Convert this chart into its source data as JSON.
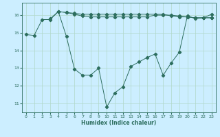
{
  "xlabel": "Humidex (Indice chaleur)",
  "bg_color": "#cceeff",
  "grid_color": "#b0d8c8",
  "line_color": "#2d6e5e",
  "line1": [
    14.9,
    14.85,
    15.75,
    15.75,
    16.2,
    14.8,
    12.95,
    12.6,
    12.6,
    13.0,
    10.8,
    11.6,
    11.95,
    13.1,
    13.35,
    13.6,
    13.8,
    12.6,
    13.3,
    13.9,
    15.95,
    15.8,
    15.85,
    16.05
  ],
  "line2": [
    null,
    null,
    null,
    15.8,
    16.2,
    16.15,
    16.05,
    15.95,
    15.9,
    15.9,
    15.9,
    15.9,
    15.9,
    15.9,
    15.9,
    15.9,
    16.0,
    16.0,
    16.0,
    15.95,
    15.9,
    15.85,
    15.85,
    15.85
  ],
  "line3": [
    null,
    null,
    null,
    null,
    16.2,
    16.15,
    16.1,
    16.05,
    16.05,
    16.05,
    16.05,
    16.05,
    16.05,
    16.05,
    16.05,
    16.05,
    16.05,
    16.05,
    15.95,
    15.9,
    15.9,
    15.85,
    15.85,
    15.85
  ],
  "xlim": [
    -0.5,
    23.5
  ],
  "ylim": [
    10.5,
    16.7
  ],
  "yticks": [
    11,
    12,
    13,
    14,
    15,
    16
  ],
  "xticks": [
    0,
    1,
    2,
    3,
    4,
    5,
    6,
    7,
    8,
    9,
    10,
    11,
    12,
    13,
    14,
    15,
    16,
    17,
    18,
    19,
    20,
    21,
    22,
    23
  ],
  "figsize": [
    3.2,
    2.0
  ],
  "dpi": 100
}
